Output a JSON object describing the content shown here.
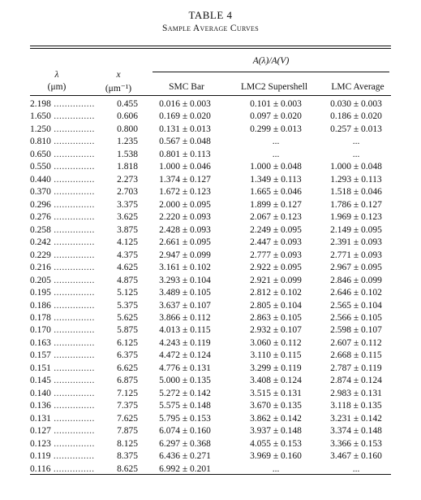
{
  "table": {
    "label": "TABLE 4",
    "caption": "Sample Average Curves",
    "group_header": "A(λ)/A(V)",
    "columns": {
      "lambda_symbol": "λ",
      "lambda_unit": "(μm)",
      "x_symbol": "x",
      "x_unit": "(μm⁻¹)",
      "smc": "SMC Bar",
      "lmc2": "LMC2 Supershell",
      "lmc": "LMC Average"
    },
    "rows": [
      [
        "2.198",
        "0.455",
        "0.016 ± 0.003",
        "0.101 ± 0.003",
        "0.030 ± 0.003"
      ],
      [
        "1.650",
        "0.606",
        "0.169 ± 0.020",
        "0.097 ± 0.020",
        "0.186 ± 0.020"
      ],
      [
        "1.250",
        "0.800",
        "0.131 ± 0.013",
        "0.299 ± 0.013",
        "0.257 ± 0.013"
      ],
      [
        "0.810",
        "1.235",
        "0.567 ± 0.048",
        "...",
        "..."
      ],
      [
        "0.650",
        "1.538",
        "0.801 ± 0.113",
        "...",
        "..."
      ],
      [
        "0.550",
        "1.818",
        "1.000 ± 0.046",
        "1.000 ± 0.048",
        "1.000 ± 0.048"
      ],
      [
        "0.440",
        "2.273",
        "1.374 ± 0.127",
        "1.349 ± 0.113",
        "1.293 ± 0.113"
      ],
      [
        "0.370",
        "2.703",
        "1.672 ± 0.123",
        "1.665 ± 0.046",
        "1.518 ± 0.046"
      ],
      [
        "0.296",
        "3.375",
        "2.000 ± 0.095",
        "1.899 ± 0.127",
        "1.786 ± 0.127"
      ],
      [
        "0.276",
        "3.625",
        "2.220 ± 0.093",
        "2.067 ± 0.123",
        "1.969 ± 0.123"
      ],
      [
        "0.258",
        "3.875",
        "2.428 ± 0.093",
        "2.249 ± 0.095",
        "2.149 ± 0.095"
      ],
      [
        "0.242",
        "4.125",
        "2.661 ± 0.095",
        "2.447 ± 0.093",
        "2.391 ± 0.093"
      ],
      [
        "0.229",
        "4.375",
        "2.947 ± 0.099",
        "2.777 ± 0.093",
        "2.771 ± 0.093"
      ],
      [
        "0.216",
        "4.625",
        "3.161 ± 0.102",
        "2.922 ± 0.095",
        "2.967 ± 0.095"
      ],
      [
        "0.205",
        "4.875",
        "3.293 ± 0.104",
        "2.921 ± 0.099",
        "2.846 ± 0.099"
      ],
      [
        "0.195",
        "5.125",
        "3.489 ± 0.105",
        "2.812 ± 0.102",
        "2.646 ± 0.102"
      ],
      [
        "0.186",
        "5.375",
        "3.637 ± 0.107",
        "2.805 ± 0.104",
        "2.565 ± 0.104"
      ],
      [
        "0.178",
        "5.625",
        "3.866 ± 0.112",
        "2.863 ± 0.105",
        "2.566 ± 0.105"
      ],
      [
        "0.170",
        "5.875",
        "4.013 ± 0.115",
        "2.932 ± 0.107",
        "2.598 ± 0.107"
      ],
      [
        "0.163",
        "6.125",
        "4.243 ± 0.119",
        "3.060 ± 0.112",
        "2.607 ± 0.112"
      ],
      [
        "0.157",
        "6.375",
        "4.472 ± 0.124",
        "3.110 ± 0.115",
        "2.668 ± 0.115"
      ],
      [
        "0.151",
        "6.625",
        "4.776 ± 0.131",
        "3.299 ± 0.119",
        "2.787 ± 0.119"
      ],
      [
        "0.145",
        "6.875",
        "5.000 ± 0.135",
        "3.408 ± 0.124",
        "2.874 ± 0.124"
      ],
      [
        "0.140",
        "7.125",
        "5.272 ± 0.142",
        "3.515 ± 0.131",
        "2.983 ± 0.131"
      ],
      [
        "0.136",
        "7.375",
        "5.575 ± 0.148",
        "3.670 ± 0.135",
        "3.118 ± 0.135"
      ],
      [
        "0.131",
        "7.625",
        "5.795 ± 0.153",
        "3.862 ± 0.142",
        "3.231 ± 0.142"
      ],
      [
        "0.127",
        "7.875",
        "6.074 ± 0.160",
        "3.937 ± 0.148",
        "3.374 ± 0.148"
      ],
      [
        "0.123",
        "8.125",
        "6.297 ± 0.368",
        "4.055 ± 0.153",
        "3.366 ± 0.153"
      ],
      [
        "0.119",
        "8.375",
        "6.436 ± 0.271",
        "3.969 ± 0.160",
        "3.467 ± 0.160"
      ],
      [
        "0.116",
        "8.625",
        "6.992 ± 0.201",
        "...",
        "..."
      ]
    ]
  }
}
